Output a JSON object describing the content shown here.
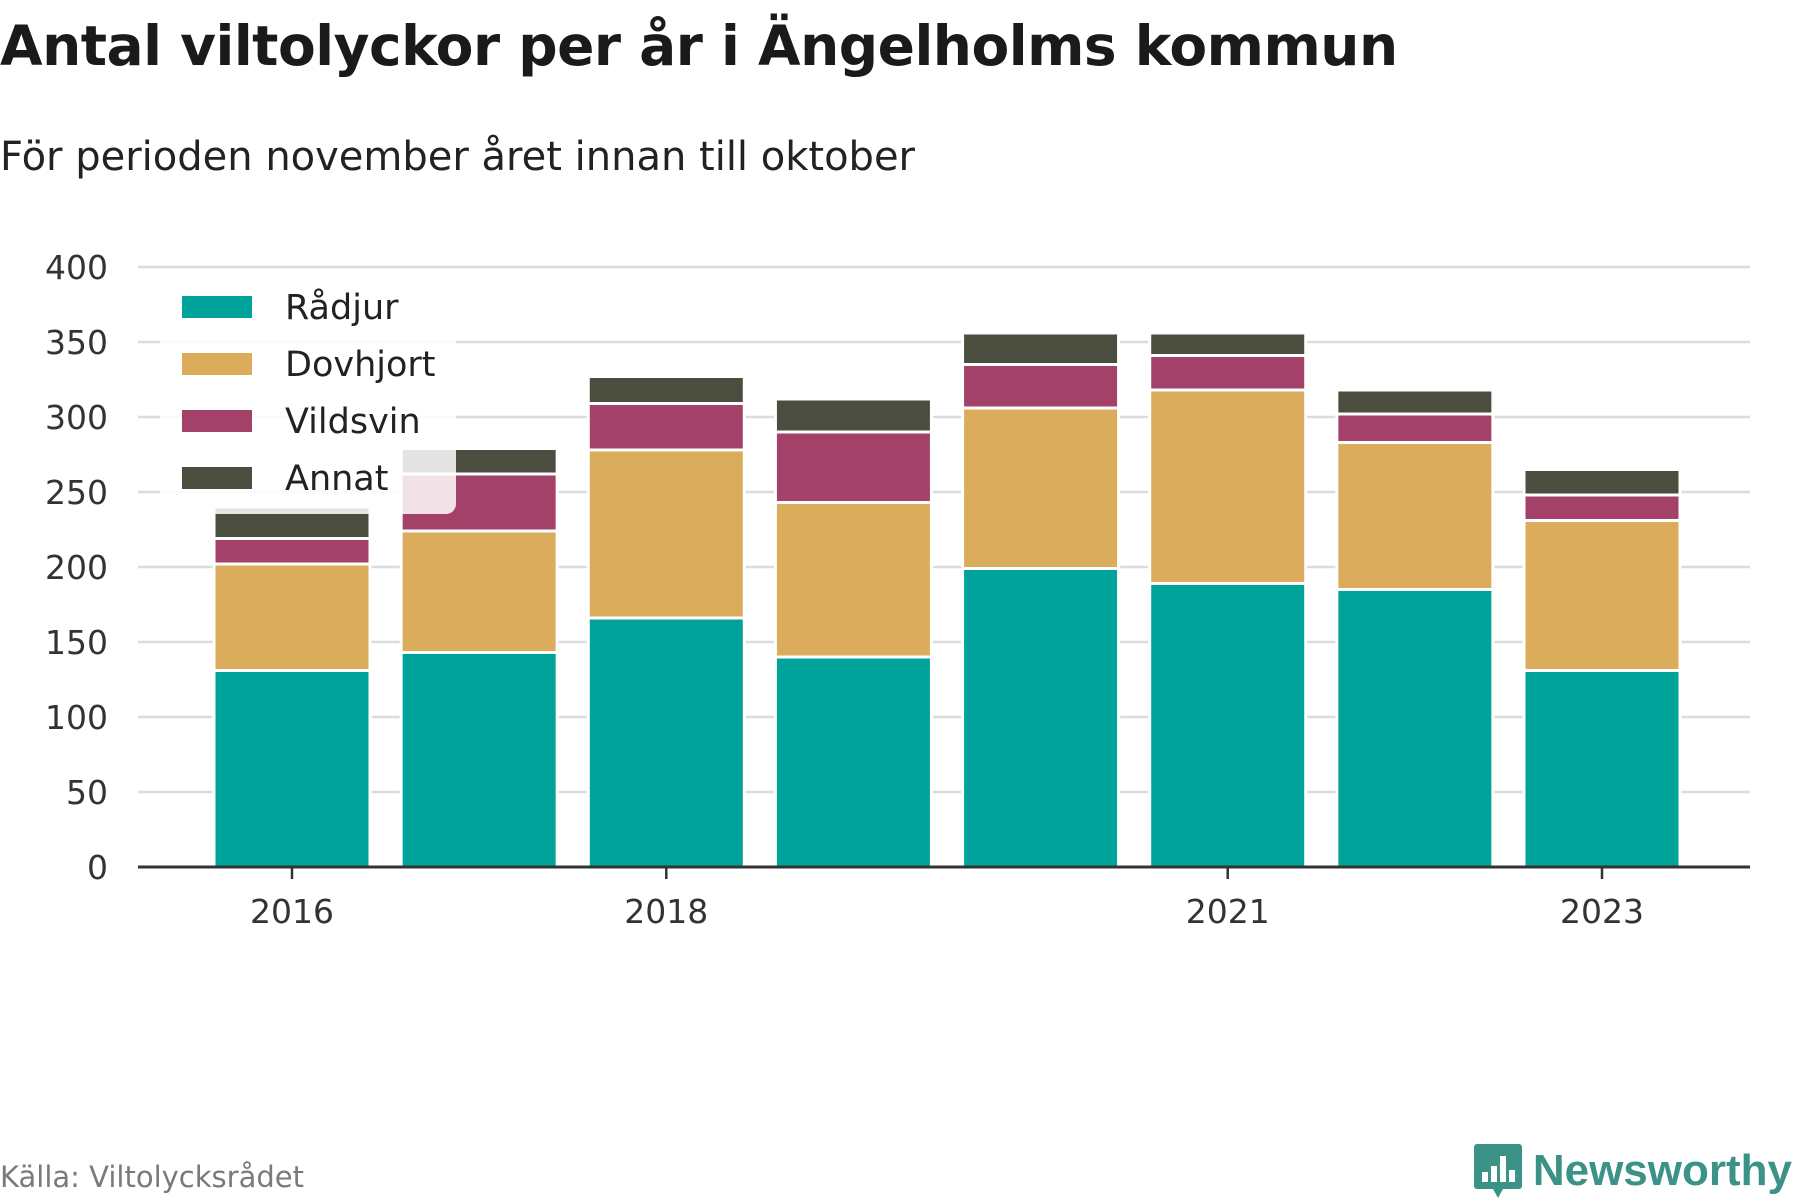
{
  "title": "Antal viltolyckor per år i Ängelholms kommun",
  "subtitle": "För perioden november året innan till oktober",
  "source": "Källa: Viltolycksrådet",
  "brand": "Newsworthy",
  "chart_data": {
    "type": "bar",
    "stacked": true,
    "title": "Antal viltolyckor per år i Ängelholms kommun",
    "subtitle": "För perioden november året innan till oktober",
    "categories": [
      2016,
      2017,
      2018,
      2019,
      2020,
      2021,
      2022,
      2023
    ],
    "x_tick_labels": [
      {
        "category": 2016,
        "label": "2016"
      },
      {
        "category": 2018,
        "label": "2018"
      },
      {
        "category": 2021,
        "label": "2021"
      },
      {
        "category": 2023,
        "label": "2023"
      }
    ],
    "series": [
      {
        "name": "Rådjur",
        "color": "#00a39a",
        "values": [
          131,
          143,
          166,
          140,
          199,
          189,
          185,
          131
        ]
      },
      {
        "name": "Dovhjort",
        "color": "#dbac5c",
        "values": [
          71,
          81,
          112,
          103,
          107,
          129,
          98,
          100
        ]
      },
      {
        "name": "Vildsvin",
        "color": "#a44168",
        "values": [
          17,
          38,
          31,
          47,
          29,
          23,
          19,
          17
        ]
      },
      {
        "name": "Annat",
        "color": "#4b4d3f",
        "values": [
          21,
          17,
          18,
          22,
          21,
          15,
          16,
          17
        ]
      }
    ],
    "y_ticks": [
      0,
      50,
      100,
      150,
      200,
      250,
      300,
      350,
      400
    ],
    "ylim": [
      0,
      400
    ],
    "grid": true,
    "legend": "top-left",
    "xlabel": "",
    "ylabel": ""
  }
}
